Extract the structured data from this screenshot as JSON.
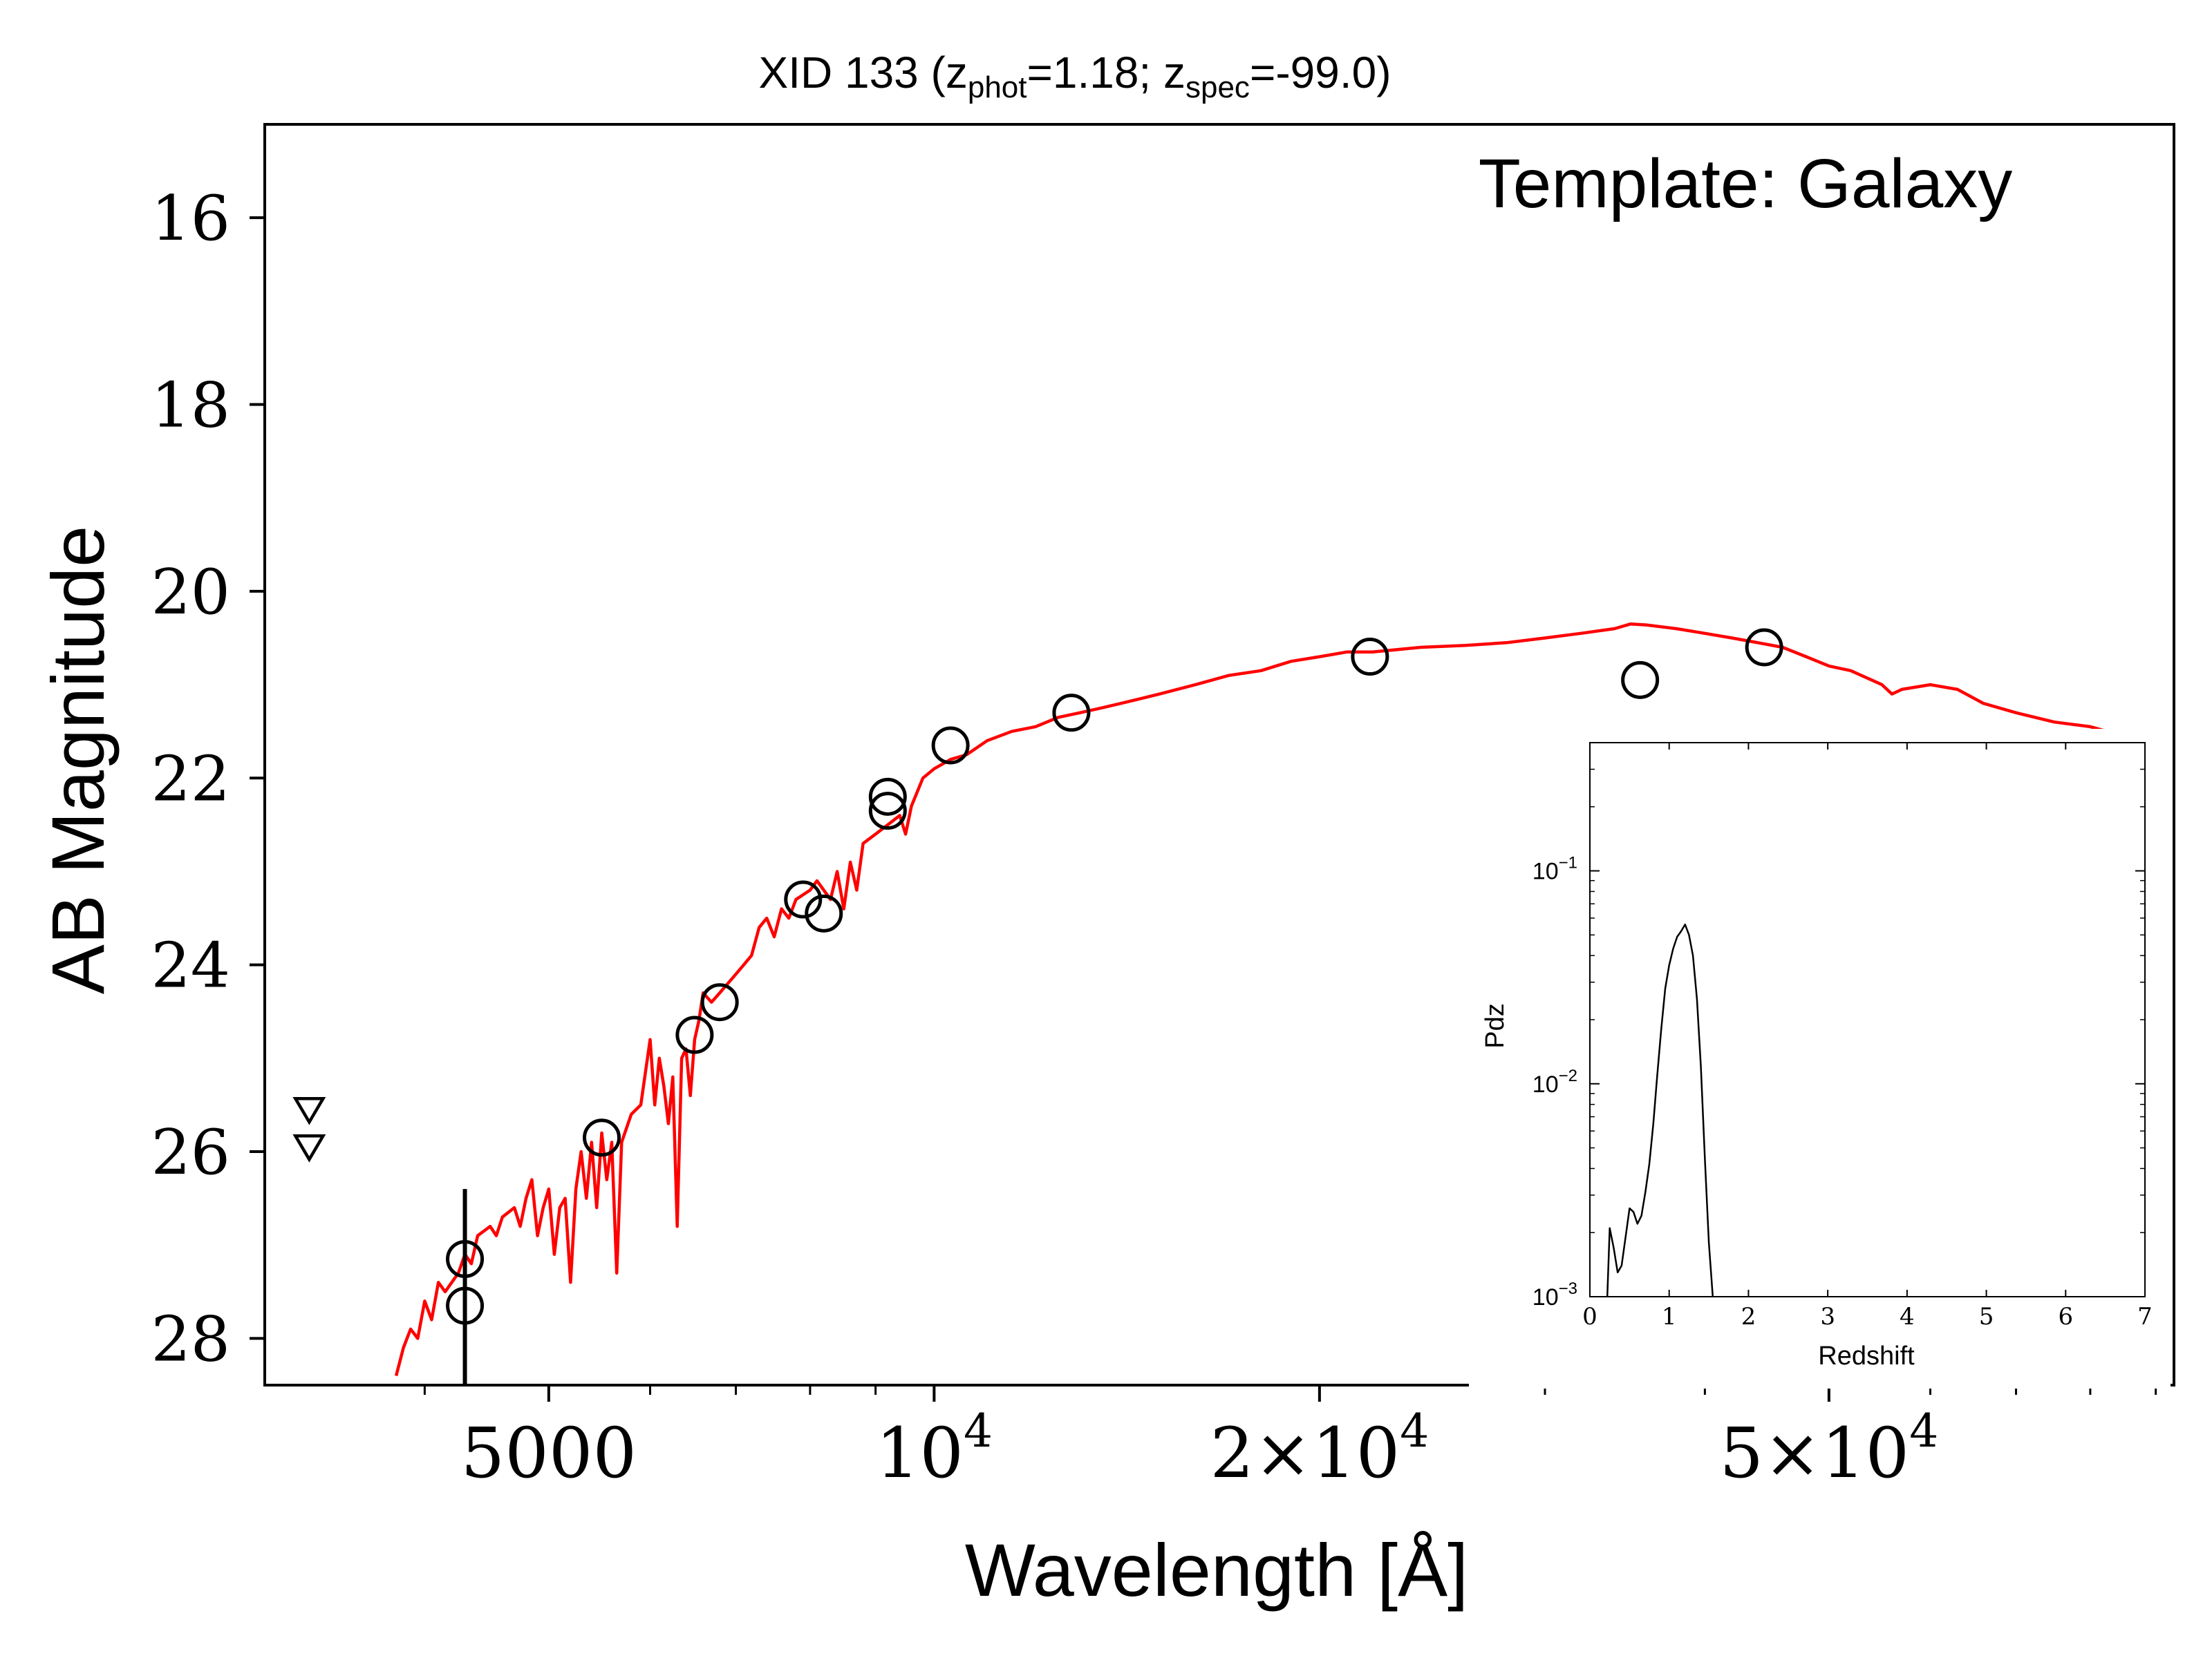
{
  "chart_data": [
    {
      "type": "scatter",
      "title_main": "XID 133 (z",
      "title_phot_sub": "phot",
      "title_phot_val": "=1.18; z",
      "title_spec_sub": "spec",
      "title_spec_val": "=-99.0)",
      "annotation": "Template: Galaxy",
      "xlabel": "Wavelength [Å]",
      "ylabel": "AB Magnitude",
      "x_scale": "log",
      "xlim": [
        3000,
        93000
      ],
      "ylim": [
        28.5,
        15
      ],
      "y_inverted": true,
      "grid": false,
      "x_ticks": [
        {
          "value": 5000,
          "label": "5000"
        },
        {
          "value": 10000,
          "label": "10",
          "sup": "4"
        },
        {
          "value": 20000,
          "label": "2×10",
          "sup": "4"
        },
        {
          "value": 50000,
          "label": "5×10",
          "sup": "4"
        }
      ],
      "y_ticks": [
        "16",
        "18",
        "20",
        "22",
        "24",
        "26",
        "28"
      ],
      "colors": {
        "template": "#ff0000",
        "points": "#000000"
      },
      "template_sed": [
        [
          3800,
          28.4
        ],
        [
          3850,
          28.1
        ],
        [
          3900,
          27.9
        ],
        [
          3950,
          28.0
        ],
        [
          4000,
          27.6
        ],
        [
          4050,
          27.8
        ],
        [
          4100,
          27.4
        ],
        [
          4150,
          27.5
        ],
        [
          4250,
          27.3
        ],
        [
          4300,
          27.1
        ],
        [
          4350,
          27.2
        ],
        [
          4400,
          26.9
        ],
        [
          4500,
          26.8
        ],
        [
          4550,
          26.9
        ],
        [
          4600,
          26.7
        ],
        [
          4700,
          26.6
        ],
        [
          4750,
          26.8
        ],
        [
          4800,
          26.5
        ],
        [
          4850,
          26.3
        ],
        [
          4900,
          26.9
        ],
        [
          4950,
          26.6
        ],
        [
          5000,
          26.4
        ],
        [
          5050,
          27.1
        ],
        [
          5100,
          26.6
        ],
        [
          5150,
          26.5
        ],
        [
          5200,
          27.4
        ],
        [
          5250,
          26.4
        ],
        [
          5300,
          26.0
        ],
        [
          5350,
          26.5
        ],
        [
          5400,
          25.9
        ],
        [
          5450,
          26.6
        ],
        [
          5500,
          25.8
        ],
        [
          5550,
          26.3
        ],
        [
          5600,
          25.9
        ],
        [
          5650,
          27.3
        ],
        [
          5700,
          25.9
        ],
        [
          5800,
          25.6
        ],
        [
          5900,
          25.5
        ],
        [
          6000,
          24.8
        ],
        [
          6050,
          25.5
        ],
        [
          6100,
          25.0
        ],
        [
          6150,
          25.3
        ],
        [
          6200,
          25.7
        ],
        [
          6250,
          25.2
        ],
        [
          6300,
          26.8
        ],
        [
          6350,
          25.0
        ],
        [
          6400,
          24.9
        ],
        [
          6450,
          25.4
        ],
        [
          6500,
          24.8
        ],
        [
          6550,
          24.6
        ],
        [
          6600,
          24.3
        ],
        [
          6700,
          24.4
        ],
        [
          6800,
          24.3
        ],
        [
          6900,
          24.2
        ],
        [
          7000,
          24.1
        ],
        [
          7100,
          24.0
        ],
        [
          7200,
          23.9
        ],
        [
          7300,
          23.6
        ],
        [
          7400,
          23.5
        ],
        [
          7500,
          23.7
        ],
        [
          7600,
          23.4
        ],
        [
          7700,
          23.5
        ],
        [
          7800,
          23.3
        ],
        [
          8000,
          23.2
        ],
        [
          8100,
          23.1
        ],
        [
          8300,
          23.3
        ],
        [
          8400,
          23.0
        ],
        [
          8500,
          23.4
        ],
        [
          8600,
          22.9
        ],
        [
          8700,
          23.2
        ],
        [
          8800,
          22.7
        ],
        [
          9000,
          22.6
        ],
        [
          9200,
          22.5
        ],
        [
          9400,
          22.4
        ],
        [
          9500,
          22.6
        ],
        [
          9600,
          22.3
        ],
        [
          9800,
          22.0
        ],
        [
          10000,
          21.9
        ],
        [
          10300,
          21.8
        ],
        [
          10600,
          21.75
        ],
        [
          11000,
          21.6
        ],
        [
          11500,
          21.5
        ],
        [
          12000,
          21.45
        ],
        [
          12500,
          21.35
        ],
        [
          13000,
          21.3
        ],
        [
          13500,
          21.25
        ],
        [
          14000,
          21.2
        ],
        [
          15000,
          21.1
        ],
        [
          16000,
          21.0
        ],
        [
          17000,
          20.9
        ],
        [
          18000,
          20.85
        ],
        [
          19000,
          20.75
        ],
        [
          20000,
          20.7
        ],
        [
          21000,
          20.65
        ],
        [
          22000,
          20.65
        ],
        [
          24000,
          20.6
        ],
        [
          26000,
          20.58
        ],
        [
          28000,
          20.55
        ],
        [
          30000,
          20.5
        ],
        [
          32000,
          20.45
        ],
        [
          34000,
          20.4
        ],
        [
          35000,
          20.35
        ],
        [
          36000,
          20.36
        ],
        [
          38000,
          20.4
        ],
        [
          40000,
          20.45
        ],
        [
          42000,
          20.5
        ],
        [
          44000,
          20.55
        ],
        [
          46000,
          20.6
        ],
        [
          48000,
          20.7
        ],
        [
          50000,
          20.8
        ],
        [
          52000,
          20.85
        ],
        [
          54000,
          20.95
        ],
        [
          55000,
          21.0
        ],
        [
          56000,
          21.1
        ],
        [
          57000,
          21.05
        ],
        [
          60000,
          21.0
        ],
        [
          63000,
          21.05
        ],
        [
          66000,
          21.2
        ],
        [
          70000,
          21.3
        ],
        [
          75000,
          21.4
        ],
        [
          80000,
          21.45
        ],
        [
          85000,
          21.55
        ],
        [
          88000,
          21.6
        ]
      ],
      "photometry": [
        {
          "x": 4300,
          "y": 27.15
        },
        {
          "x": 4300,
          "y": 27.65
        },
        {
          "x": 5500,
          "y": 25.85
        },
        {
          "x": 6500,
          "y": 24.75
        },
        {
          "x": 6800,
          "y": 24.4
        },
        {
          "x": 7900,
          "y": 23.3
        },
        {
          "x": 8200,
          "y": 23.45
        },
        {
          "x": 9200,
          "y": 22.35
        },
        {
          "x": 9200,
          "y": 22.2
        },
        {
          "x": 10300,
          "y": 21.65
        },
        {
          "x": 12800,
          "y": 21.3
        },
        {
          "x": 21900,
          "y": 20.7
        },
        {
          "x": 35600,
          "y": 20.95
        },
        {
          "x": 44500,
          "y": 20.6
        }
      ],
      "errorbars": [
        {
          "x": 4300,
          "y_low": 26.4,
          "y_high": 28.5
        }
      ],
      "upper_limits": [
        {
          "x": 3250,
          "y": 25.55
        },
        {
          "x": 3250,
          "y": 25.95
        }
      ]
    },
    {
      "type": "line",
      "xlabel": "Redshift",
      "ylabel": "Pdz",
      "y_scale": "log",
      "xlim": [
        0,
        7
      ],
      "ylim": [
        0.001,
        0.4
      ],
      "x_ticks": [
        "0",
        "1",
        "2",
        "3",
        "4",
        "5",
        "6",
        "7"
      ],
      "y_ticks": [
        {
          "value": 0.1,
          "base": "10",
          "sup": "−1"
        },
        {
          "value": 0.01,
          "base": "10",
          "sup": "−2"
        },
        {
          "value": 0.001,
          "base": "10",
          "sup": "−3"
        }
      ],
      "colors": {
        "line": "#000000"
      },
      "x": [
        0.22,
        0.25,
        0.3,
        0.35,
        0.4,
        0.45,
        0.5,
        0.55,
        0.6,
        0.65,
        0.7,
        0.75,
        0.8,
        0.85,
        0.9,
        0.95,
        1.0,
        1.05,
        1.1,
        1.15,
        1.2,
        1.25,
        1.3,
        1.35,
        1.4,
        1.45,
        1.5,
        1.55
      ],
      "y": [
        0.001,
        0.0021,
        0.0017,
        0.0013,
        0.0014,
        0.0019,
        0.0026,
        0.0025,
        0.0022,
        0.0024,
        0.0031,
        0.0042,
        0.0065,
        0.011,
        0.018,
        0.028,
        0.036,
        0.043,
        0.049,
        0.052,
        0.056,
        0.05,
        0.04,
        0.025,
        0.012,
        0.0045,
        0.0018,
        0.001
      ]
    }
  ]
}
